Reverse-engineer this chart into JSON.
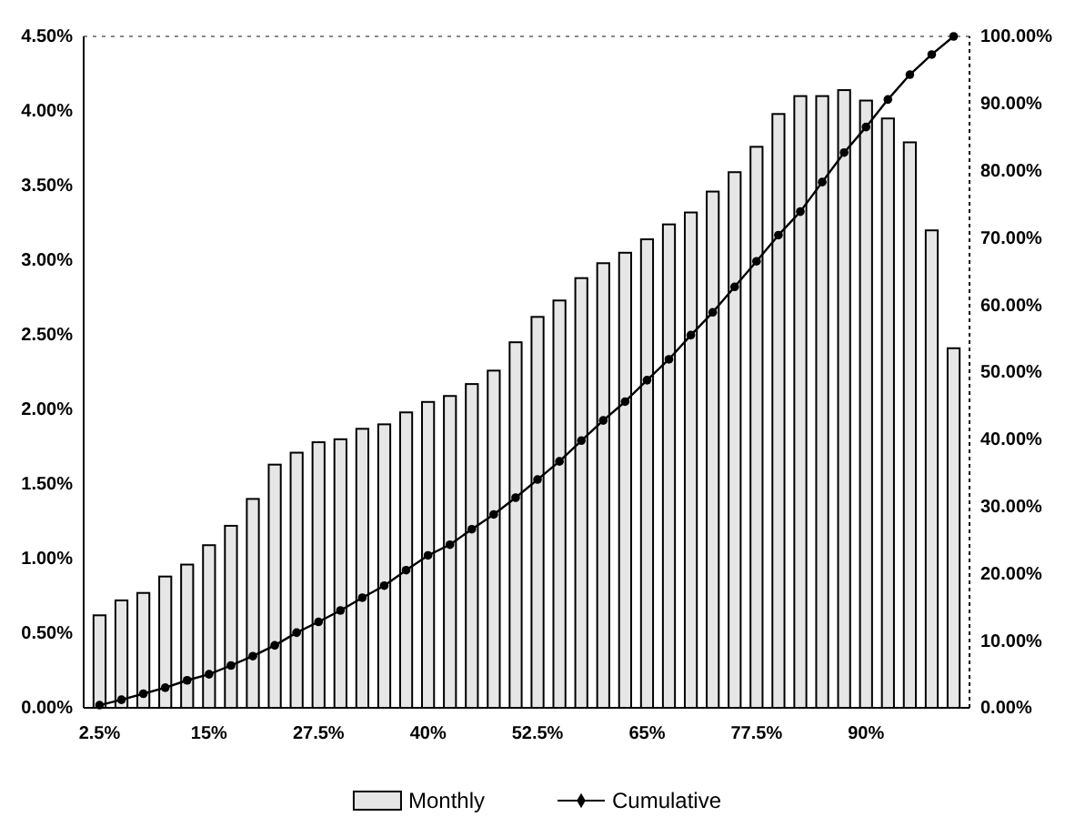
{
  "chart_data": {
    "type": "bar",
    "categories": [
      "2.5%",
      null,
      null,
      null,
      null,
      "15%",
      null,
      null,
      null,
      null,
      "27.5%",
      null,
      null,
      null,
      null,
      "40%",
      null,
      null,
      null,
      null,
      "52.5%",
      null,
      null,
      null,
      null,
      "65%",
      null,
      null,
      null,
      null,
      "77.5%",
      null,
      null,
      null,
      null,
      "90%",
      null,
      null,
      null,
      null
    ],
    "series": [
      {
        "name": "Monthly",
        "color": "#e6e6e6",
        "values": [
          0.62,
          0.72,
          0.77,
          0.88,
          0.96,
          1.09,
          1.22,
          1.4,
          1.63,
          1.71,
          1.78,
          1.8,
          1.87,
          1.9,
          1.98,
          2.05,
          2.09,
          2.17,
          2.26,
          2.45,
          2.62,
          2.73,
          2.88,
          2.98,
          3.05,
          3.14,
          3.24,
          3.32,
          3.46,
          3.59,
          3.76,
          3.98,
          4.1,
          4.1,
          4.14,
          4.07,
          3.95,
          3.79,
          3.2,
          2.41
        ]
      },
      {
        "name": "Cumulative",
        "type": "line",
        "axis": "y2",
        "color": "#000000",
        "marker": "circle",
        "values": [
          0.4,
          1.2,
          2.1,
          3.0,
          4.1,
          5.0,
          6.3,
          7.7,
          9.3,
          11.2,
          12.8,
          14.5,
          16.4,
          18.2,
          20.5,
          22.7,
          24.3,
          26.6,
          28.8,
          31.3,
          34.0,
          36.7,
          39.8,
          42.8,
          45.6,
          48.8,
          51.9,
          55.5,
          58.9,
          62.7,
          66.5,
          70.4,
          73.9,
          78.3,
          82.7,
          86.5,
          90.6,
          94.3,
          97.3,
          100
        ]
      }
    ],
    "ylim": [
      0,
      4.5
    ],
    "yticks": [
      {
        "value": 0,
        "label": "0.00%"
      },
      {
        "value": 0.5,
        "label": "0.50%"
      },
      {
        "value": 1,
        "label": "1.00%"
      },
      {
        "value": 1.5,
        "label": "1.50%"
      },
      {
        "value": 2,
        "label": "2.00%"
      },
      {
        "value": 2.5,
        "label": "2.50%"
      },
      {
        "value": 3,
        "label": "3.00%"
      },
      {
        "value": 3.5,
        "label": "3.50%"
      },
      {
        "value": 4,
        "label": "4.00%"
      },
      {
        "value": 4.5,
        "label": "4.50%"
      }
    ],
    "y2lim": [
      0,
      100
    ],
    "y2ticks": [
      {
        "value": 0,
        "label": "0.00%"
      },
      {
        "value": 10,
        "label": "10.00%"
      },
      {
        "value": 20,
        "label": "20.00%"
      },
      {
        "value": 30,
        "label": "30.00%"
      },
      {
        "value": 40,
        "label": "40.00%"
      },
      {
        "value": 50,
        "label": "50.00%"
      },
      {
        "value": 60,
        "label": "60.00%"
      },
      {
        "value": 70,
        "label": "70.00%"
      },
      {
        "value": 80,
        "label": "80.00%"
      },
      {
        "value": 90,
        "label": "90.00%"
      },
      {
        "value": 100,
        "label": "100.00%"
      }
    ],
    "grid": false,
    "legend": "bottom"
  }
}
